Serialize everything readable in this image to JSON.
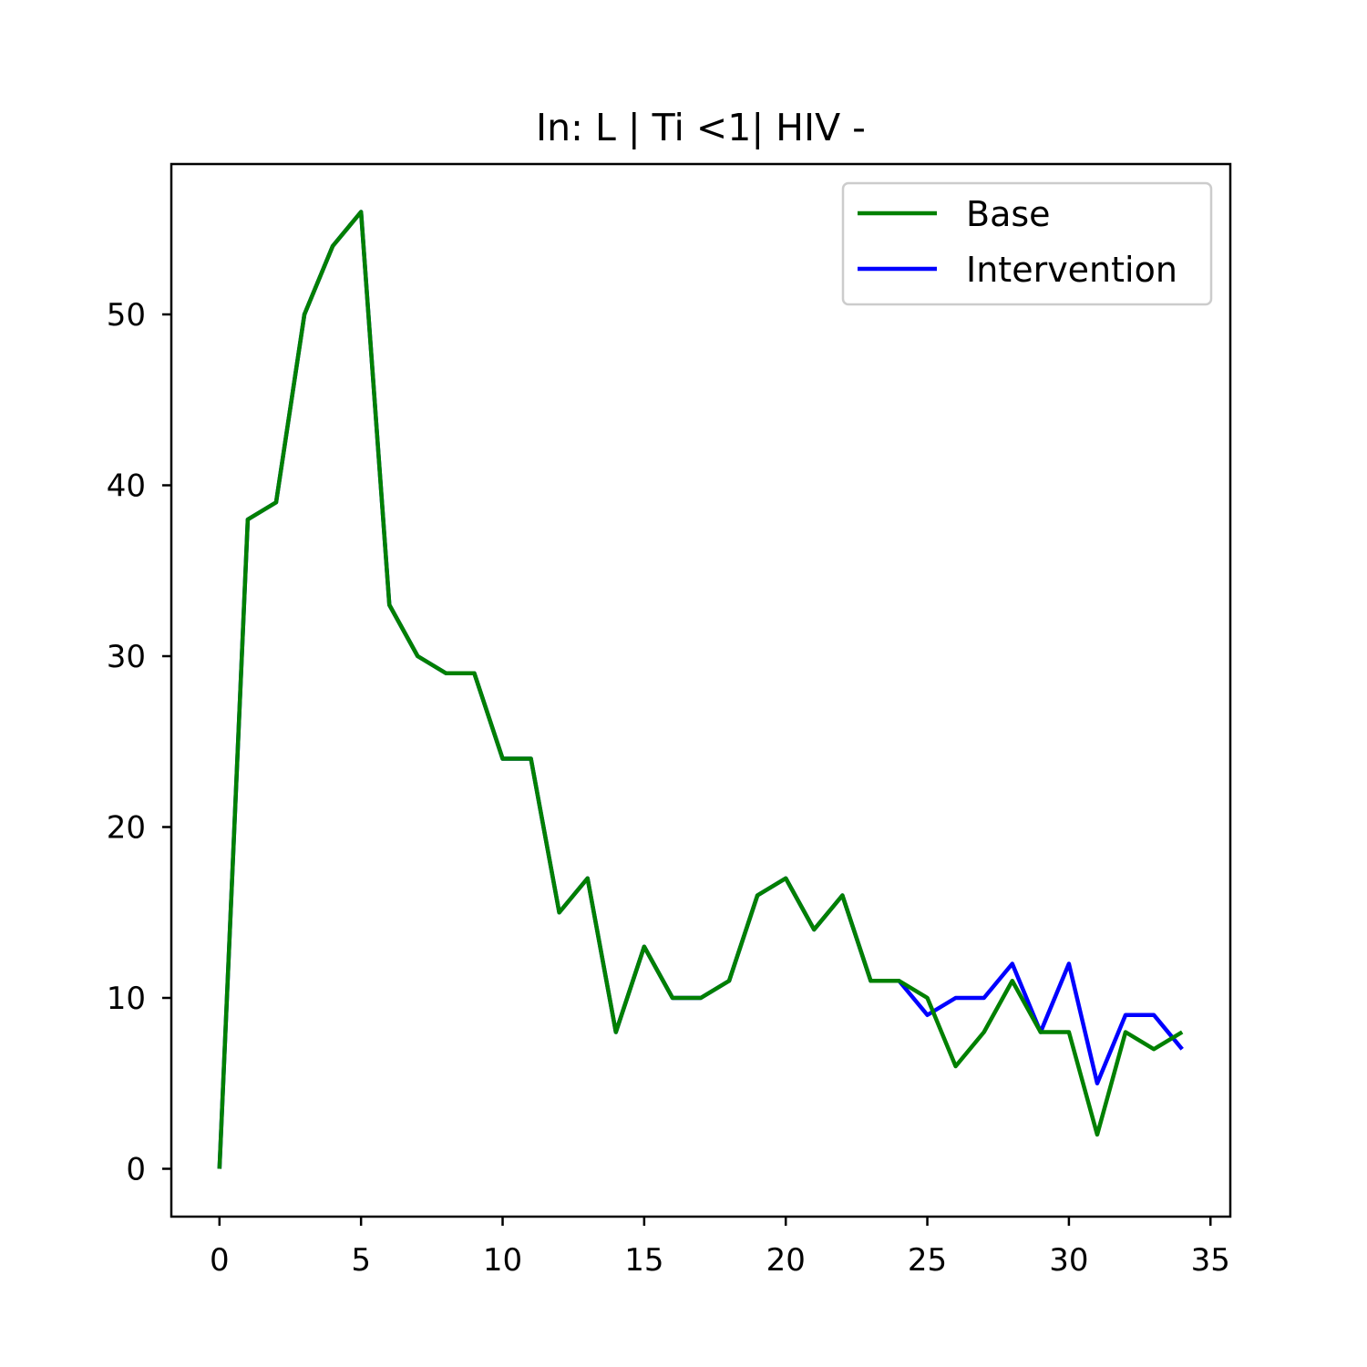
{
  "chart_data": {
    "type": "line",
    "title": "In: L | Ti <1| HIV -",
    "xlabel": "",
    "ylabel": "",
    "xlim": [
      -1.7,
      35.7
    ],
    "ylim": [
      -2.8,
      58.8
    ],
    "xticks": [
      0,
      5,
      10,
      15,
      20,
      25,
      30,
      35
    ],
    "yticks": [
      0,
      10,
      20,
      30,
      40,
      50
    ],
    "grid": false,
    "legend_position": "upper-right",
    "x": [
      0,
      1,
      2,
      3,
      4,
      5,
      6,
      7,
      8,
      9,
      10,
      11,
      12,
      13,
      14,
      15,
      16,
      17,
      18,
      19,
      20,
      21,
      22,
      23,
      24,
      25,
      26,
      27,
      28,
      29,
      30,
      31,
      32,
      33,
      34
    ],
    "series": [
      {
        "name": "Intervention",
        "color": "#0000ff",
        "values": [
          0,
          38,
          39,
          50,
          54,
          56,
          33,
          30,
          29,
          29,
          24,
          24,
          15,
          17,
          8,
          13,
          10,
          10,
          11,
          16,
          17,
          14,
          16,
          11,
          11,
          9,
          10,
          10,
          12,
          8,
          12,
          5,
          9,
          9,
          7
        ]
      },
      {
        "name": "Base",
        "color": "#008000",
        "values": [
          0,
          38,
          39,
          50,
          54,
          56,
          33,
          30,
          29,
          29,
          24,
          24,
          15,
          17,
          8,
          13,
          10,
          10,
          11,
          16,
          17,
          14,
          16,
          11,
          11,
          10,
          6,
          8,
          11,
          8,
          8,
          2,
          8,
          7,
          8
        ]
      }
    ],
    "legend_order": [
      "Base",
      "Intervention"
    ]
  }
}
